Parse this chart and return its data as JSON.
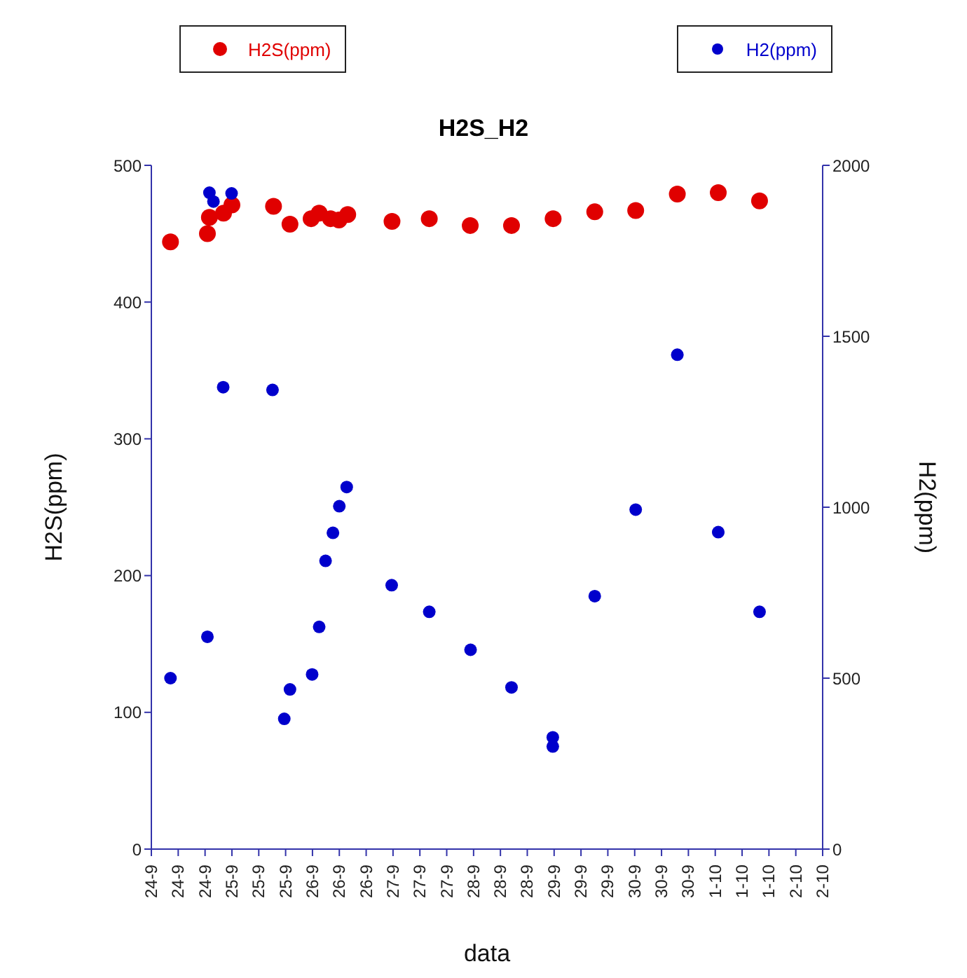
{
  "chart_data": {
    "type": "scatter",
    "title": "H2S_H2",
    "xlabel": "data",
    "ylabel": "H2S(ppm)",
    "y2label": "H2(ppm)",
    "xlim": [
      "--09-24T00:00",
      "--10-02T08:00"
    ],
    "xticks": [
      {
        "value": "--09-24T00:00",
        "label": "24-9"
      },
      {
        "value": "--09-24T08:00",
        "label": "24-9"
      },
      {
        "value": "--09-24T16:00",
        "label": "24-9"
      },
      {
        "value": "--09-25T00:00",
        "label": "25-9"
      },
      {
        "value": "--09-25T08:00",
        "label": "25-9"
      },
      {
        "value": "--09-25T16:00",
        "label": "25-9"
      },
      {
        "value": "--09-26T00:00",
        "label": "26-9"
      },
      {
        "value": "--09-26T08:00",
        "label": "26-9"
      },
      {
        "value": "--09-26T16:00",
        "label": "26-9"
      },
      {
        "value": "--09-27T00:00",
        "label": "27-9"
      },
      {
        "value": "--09-27T08:00",
        "label": "27-9"
      },
      {
        "value": "--09-27T16:00",
        "label": "27-9"
      },
      {
        "value": "--09-28T00:00",
        "label": "28-9"
      },
      {
        "value": "--09-28T08:00",
        "label": "28-9"
      },
      {
        "value": "--09-28T16:00",
        "label": "28-9"
      },
      {
        "value": "--09-29T00:00",
        "label": "29-9"
      },
      {
        "value": "--09-29T08:00",
        "label": "29-9"
      },
      {
        "value": "--09-29T16:00",
        "label": "29-9"
      },
      {
        "value": "--09-30T00:00",
        "label": "30-9"
      },
      {
        "value": "--09-30T08:00",
        "label": "30-9"
      },
      {
        "value": "--09-30T16:00",
        "label": "30-9"
      },
      {
        "value": "--10-01T00:00",
        "label": "1-10"
      },
      {
        "value": "--10-01T08:00",
        "label": "1-10"
      },
      {
        "value": "--10-01T16:00",
        "label": "1-10"
      },
      {
        "value": "--10-02T00:00",
        "label": "2-10"
      },
      {
        "value": "--10-02T08:00",
        "label": "2-10"
      }
    ],
    "ylim": [
      0,
      500
    ],
    "yticks": [
      0,
      100,
      200,
      300,
      400,
      500
    ],
    "y2lim": [
      0,
      2000
    ],
    "y2ticks": [
      0,
      500,
      1000,
      1500,
      2000
    ],
    "legend": "top",
    "marker": "circle",
    "series": [
      {
        "name": "H2S(ppm)",
        "color": "#e00000",
        "x": [
          "--09-24T05:42",
          "--09-24T16:42",
          "--09-24T17:18",
          "--09-24T21:30",
          "--09-24T23:00",
          "--09-25T00:00",
          "--09-25T12:24",
          "--09-25T15:54",
          "--09-25T17:18",
          "--09-25T23:36",
          "--09-26T02:00",
          "--09-26T05:24",
          "--09-26T07:54",
          "--09-26T10:30",
          "--09-26T23:42",
          "--09-27T10:48",
          "--09-27T23:00",
          "--09-28T11:18",
          "--09-28T23:42",
          "--09-29T12:06",
          "--09-30T00:18",
          "--09-30T12:42",
          "--10-01T00:54",
          "--10-01T13:12"
        ],
        "values": [
          444,
          450,
          462,
          465,
          null,
          471,
          470,
          null,
          457,
          461,
          465,
          461,
          460,
          464,
          459,
          461,
          456,
          456,
          461,
          466,
          467,
          479,
          480,
          474
        ]
      },
      {
        "name": "H2(ppm)",
        "color": "#0000cc",
        "axis": "y2",
        "x": [
          "--09-24T05:42",
          "--09-24T16:42",
          "--09-24T17:18",
          "--09-24T18:30",
          "--09-24T21:24",
          "--09-24T23:54",
          "--09-25T12:06",
          "--09-25T15:36",
          "--09-25T17:18",
          "--09-25T23:54",
          "--09-26T02:00",
          "--09-26T03:54",
          "--09-26T06:06",
          "--09-26T08:00",
          "--09-26T10:12",
          "--09-26T23:36",
          "--09-27T10:48",
          "--09-27T23:06",
          "--09-28T11:18",
          "--09-28T23:36",
          "--09-28T23:36",
          "--09-29T12:06",
          "--09-30T00:18",
          "--09-30T12:42",
          "--10-01T00:54",
          "--10-01T13:12"
        ],
        "values": [
          500,
          621,
          1920,
          1894,
          1351,
          1918,
          1343,
          381,
          467,
          511,
          650,
          843,
          925,
          1003,
          1059,
          772,
          694,
          583,
          473,
          327,
          300,
          740,
          993,
          1446,
          927,
          694
        ]
      }
    ]
  }
}
